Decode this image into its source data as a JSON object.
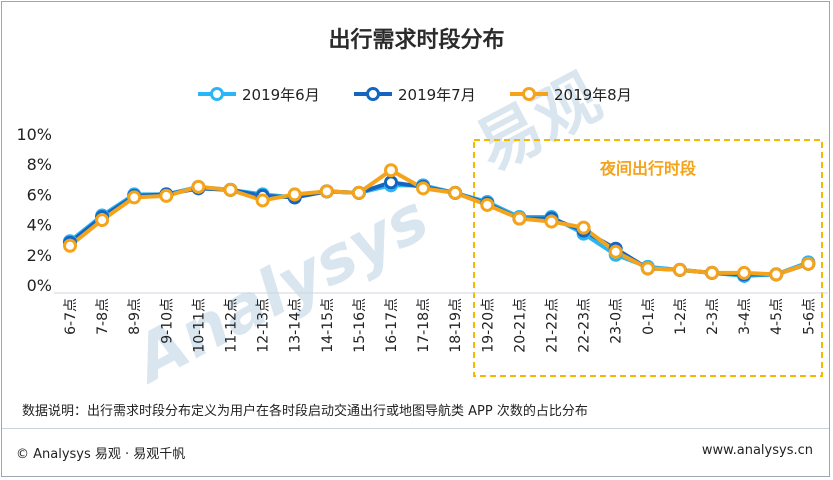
{
  "chart_data": {
    "type": "line",
    "title": "出行需求时段分布",
    "categories": [
      "6-7点",
      "7-8点",
      "8-9点",
      "9-10点",
      "10-11点",
      "11-12点",
      "12-13点",
      "13-14点",
      "14-15点",
      "15-16点",
      "16-17点",
      "17-18点",
      "18-19点",
      "19-20点",
      "20-21点",
      "21-22点",
      "22-23点",
      "23-0点",
      "0-1点",
      "1-2点",
      "2-3点",
      "3-4点",
      "4-5点",
      "5-6点"
    ],
    "series": [
      {
        "name": "2019年6月",
        "color": "#29b6f6",
        "values": [
          2.9,
          4.6,
          6.0,
          6.0,
          6.5,
          6.3,
          6.0,
          5.8,
          6.2,
          6.1,
          6.6,
          6.6,
          6.1,
          5.5,
          4.5,
          4.5,
          3.4,
          2.0,
          1.2,
          1.0,
          0.8,
          0.6,
          0.7,
          1.5
        ]
      },
      {
        "name": "2019年7月",
        "color": "#1565c0",
        "values": [
          2.8,
          4.5,
          5.9,
          6.0,
          6.4,
          6.3,
          5.9,
          5.8,
          6.2,
          6.1,
          6.8,
          6.5,
          6.1,
          5.4,
          4.4,
          4.4,
          3.6,
          2.4,
          1.1,
          1.0,
          0.8,
          0.7,
          0.7,
          1.4
        ]
      },
      {
        "name": "2019年8月",
        "color": "#f5a31a",
        "values": [
          2.6,
          4.3,
          5.8,
          5.9,
          6.5,
          6.3,
          5.6,
          6.0,
          6.2,
          6.1,
          7.6,
          6.4,
          6.1,
          5.3,
          4.4,
          4.2,
          3.8,
          2.2,
          1.1,
          1.0,
          0.8,
          0.8,
          0.7,
          1.4
        ]
      }
    ],
    "ylim": [
      0,
      10
    ],
    "yticks": [
      "0%",
      "2%",
      "4%",
      "6%",
      "8%",
      "10%"
    ],
    "grid": false,
    "legend": "top-center",
    "annotation": "夜间出行时段"
  },
  "note": "数据说明：出行需求时段分布定义为用户在各时段启动交通出行或地图导航类 APP 次数的占比分布",
  "footer": {
    "left": "© Analysys  易观 · 易观千帆",
    "right": "www.analysys.cn"
  }
}
